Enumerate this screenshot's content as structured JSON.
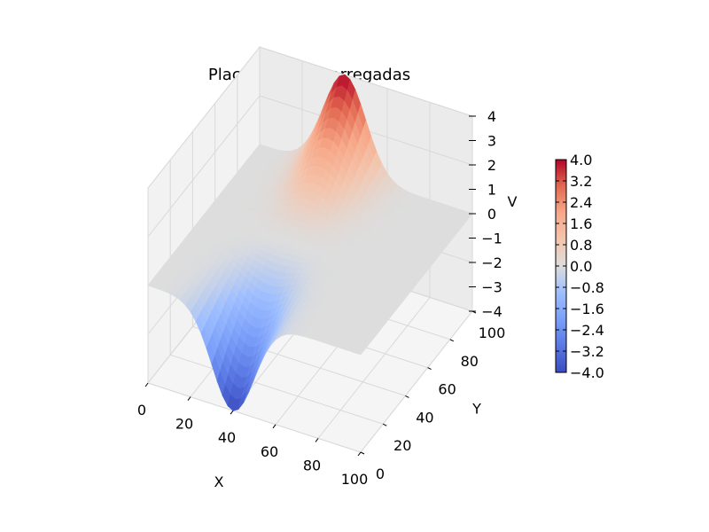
{
  "chart_data": {
    "type": "surface3d",
    "title": "Placas planas carregadas",
    "xlabel": "X",
    "ylabel": "Y",
    "zlabel": "V",
    "xlim": [
      0,
      100
    ],
    "ylim": [
      0,
      100
    ],
    "zlim": [
      -4,
      4
    ],
    "xticks": [
      "0",
      "20",
      "40",
      "60",
      "80",
      "100"
    ],
    "yticks": [
      "0",
      "20",
      "40",
      "60",
      "80",
      "100"
    ],
    "zticks": [
      "−4",
      "−3",
      "−2",
      "−1",
      "0",
      "1",
      "2",
      "3",
      "4"
    ],
    "colormap": "coolwarm",
    "grid": true,
    "colorbar": {
      "min": -4.0,
      "max": 4.0,
      "ticks": [
        "4.0",
        "3.2",
        "2.4",
        "1.6",
        "0.8",
        "0.0",
        "−0.8",
        "−1.6",
        "−2.4",
        "−3.2",
        "−4.0"
      ]
    },
    "surface": {
      "description_values": [
        {
          "x": 40,
          "y": 100,
          "v": 4.0
        },
        {
          "x": 40,
          "y": 0,
          "v": -4.0
        },
        {
          "x": 0,
          "y": 50,
          "v": 0.0
        },
        {
          "x": 100,
          "y": 50,
          "v": 0.0
        }
      ]
    }
  }
}
